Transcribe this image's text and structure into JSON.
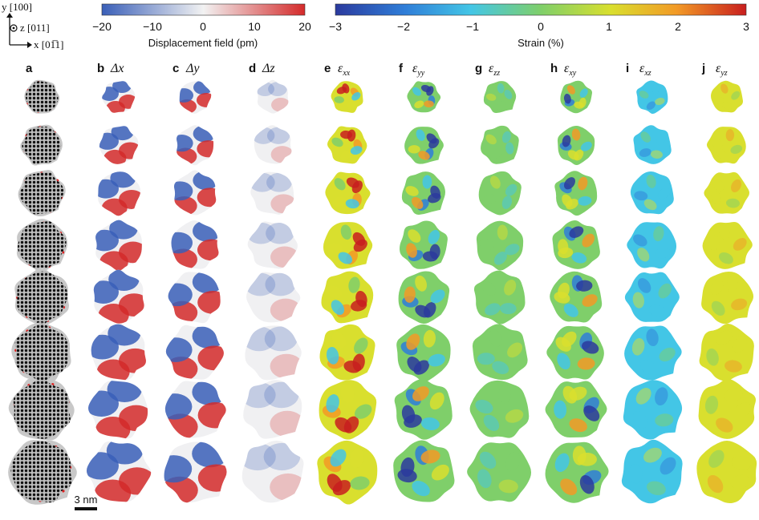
{
  "axes": {
    "y_label": "y [100]",
    "z_label": "z [011]",
    "x_label": "x [01̅1]"
  },
  "colorbar_displacement": {
    "ticks": [
      "−20",
      "−10",
      "0",
      "10",
      "20"
    ],
    "label": "Displacement field (pm)",
    "colors": [
      "#3a5fb8",
      "#f2f2f2",
      "#d42a2a"
    ]
  },
  "colorbar_strain": {
    "ticks": [
      "−3",
      "−2",
      "−1",
      "0",
      "1",
      "2",
      "3"
    ],
    "label": "Strain (%)",
    "colors": [
      "#2b3a9e",
      "#2f7ed8",
      "#43c6e6",
      "#7fcf6a",
      "#d9df2e",
      "#f29a26",
      "#c81e1e"
    ]
  },
  "columns": [
    {
      "letter": "a",
      "symbol": ""
    },
    {
      "letter": "b",
      "symbol": "Δx"
    },
    {
      "letter": "c",
      "symbol": "Δy"
    },
    {
      "letter": "d",
      "symbol": "Δz"
    },
    {
      "letter": "e",
      "symbol": "ε",
      "sub": "xx"
    },
    {
      "letter": "f",
      "symbol": "ε",
      "sub": "yy"
    },
    {
      "letter": "g",
      "symbol": "ε",
      "sub": "zz"
    },
    {
      "letter": "h",
      "symbol": "ε",
      "sub": "xy"
    },
    {
      "letter": "i",
      "symbol": "ε",
      "sub": "xz"
    },
    {
      "letter": "j",
      "symbol": "ε",
      "sub": "yz"
    }
  ],
  "scale_bar": "3 nm"
}
